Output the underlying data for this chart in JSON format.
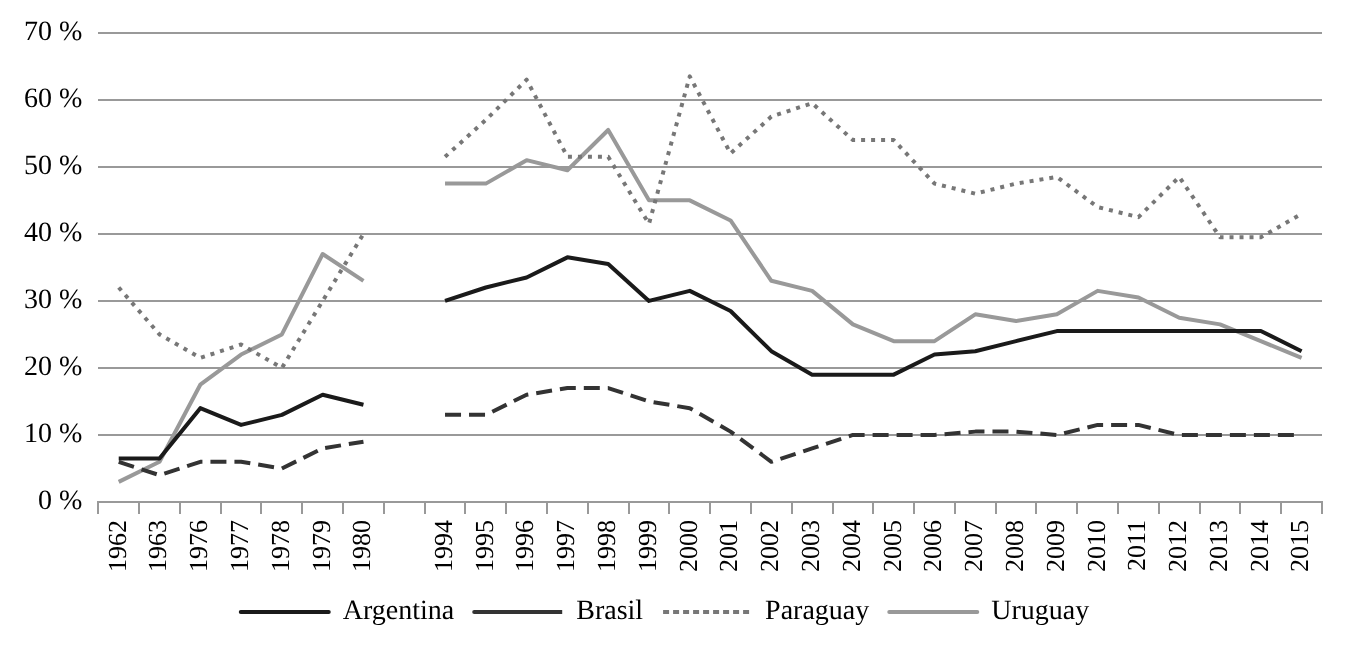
{
  "chart_data": {
    "type": "line",
    "categories": [
      "1962",
      "1963",
      "1976",
      "1977",
      "1978",
      "1979",
      "1980",
      null,
      "1994",
      "1995",
      "1996",
      "1997",
      "1998",
      "1999",
      "2000",
      "2001",
      "2002",
      "2003",
      "2004",
      "2005",
      "2006",
      "2007",
      "2008",
      "2009",
      "2010",
      "2011",
      "2012",
      "2013",
      "2014",
      "2015"
    ],
    "series": [
      {
        "name": "Argentina",
        "color": "#1a1a1a",
        "line_style": "solid",
        "values": [
          6.5,
          6.5,
          14,
          11.5,
          13,
          16,
          14.5,
          null,
          30,
          32,
          33.5,
          36.5,
          35.5,
          30,
          31.5,
          28.5,
          22.5,
          19,
          19,
          19,
          22,
          22.5,
          24,
          25.5,
          25.5,
          25.5,
          25.5,
          25.5,
          25.5,
          22.5
        ]
      },
      {
        "name": "Brasil",
        "color": "#333333",
        "line_style": "dashed",
        "values": [
          6,
          4,
          6,
          6,
          5,
          8,
          9,
          null,
          13,
          13,
          16,
          17,
          17,
          15,
          14,
          10.5,
          6,
          8,
          10,
          10,
          10,
          10.5,
          10.5,
          10,
          11.5,
          11.5,
          10,
          10,
          10,
          10
        ]
      },
      {
        "name": "Paraguay",
        "color": "#777777",
        "line_style": "dotted",
        "values": [
          32,
          25,
          21.5,
          23.5,
          20,
          30,
          40,
          null,
          51.5,
          57,
          63,
          51.5,
          51.5,
          41.5,
          63.5,
          52,
          57.5,
          59.5,
          54,
          54,
          47.5,
          46,
          47.5,
          48.5,
          44,
          42.5,
          48.5,
          39.5,
          39.5,
          43
        ]
      },
      {
        "name": "Uruguay",
        "color": "#999999",
        "line_style": "solid",
        "values": [
          3,
          6,
          17.5,
          22,
          25,
          37,
          33,
          null,
          47.5,
          47.5,
          51,
          49.5,
          55.5,
          45,
          45,
          42,
          33,
          31.5,
          26.5,
          24,
          24,
          28,
          27,
          28,
          31.5,
          30.5,
          27.5,
          26.5,
          24,
          21.5
        ]
      }
    ],
    "ylim": [
      0,
      70
    ],
    "yticks": [
      {
        "value": 0,
        "label": "0 %"
      },
      {
        "value": 10,
        "label": "10 %"
      },
      {
        "value": 20,
        "label": "20 %"
      },
      {
        "value": 30,
        "label": "30 %"
      },
      {
        "value": 40,
        "label": "40 %"
      },
      {
        "value": 50,
        "label": "50 %"
      },
      {
        "value": 60,
        "label": "60 %"
      },
      {
        "value": 70,
        "label": "70 %"
      }
    ],
    "grid": "y",
    "legend": "bottom",
    "marker": "none"
  }
}
